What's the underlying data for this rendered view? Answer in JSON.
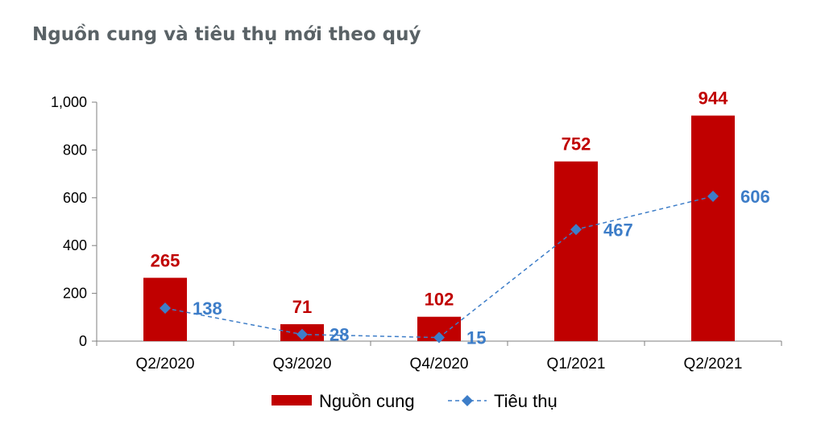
{
  "title": "Nguồn cung và tiêu thụ mới theo quý",
  "colors": {
    "bar": "#c00000",
    "line": "#3d7dc8",
    "axis": "#7f7f7f"
  },
  "chart_data": {
    "type": "bar",
    "title": "Nguồn cung và tiêu thụ mới theo quý",
    "xlabel": "",
    "ylabel": "",
    "ylim": [
      0,
      1000
    ],
    "yticks": [
      0,
      200,
      400,
      600,
      800,
      1000
    ],
    "ytick_labels": [
      "0",
      "200",
      "400",
      "600",
      "800",
      "1,000"
    ],
    "categories": [
      "Q2/2020",
      "Q3/2020",
      "Q4/2020",
      "Q1/2021",
      "Q2/2021"
    ],
    "grid": false,
    "legend_position": "bottom",
    "series": [
      {
        "name": "Nguồn cung",
        "type": "bar",
        "values": [
          265,
          71,
          102,
          752,
          944
        ],
        "labels": [
          "265",
          "71",
          "102",
          "752",
          "944"
        ]
      },
      {
        "name": "Tiêu thụ",
        "type": "line",
        "style": "dashed",
        "marker": "diamond",
        "values": [
          138,
          28,
          15,
          467,
          606
        ],
        "labels": [
          "138",
          "28",
          "15",
          "467",
          "606"
        ]
      }
    ]
  }
}
